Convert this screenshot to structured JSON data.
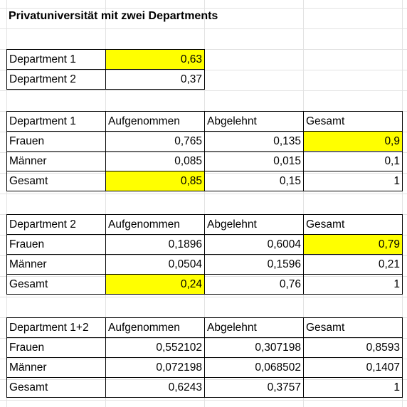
{
  "title": "Privatuniversität mit zwei Departments",
  "shares": [
    {
      "label": "Department 1",
      "value": "0,63"
    },
    {
      "label": "Department 2",
      "value": "0,37"
    }
  ],
  "tables": [
    {
      "header": [
        "Department 1",
        "Aufgenommen",
        "Abgelehnt",
        "Gesamt"
      ],
      "rows": [
        [
          "Frauen",
          "0,765",
          "0,135",
          "0,9"
        ],
        [
          "Männer",
          "0,085",
          "0,015",
          "0,1"
        ],
        [
          "Gesamt",
          "0,85",
          "0,15",
          "1"
        ]
      ]
    },
    {
      "header": [
        "Department 2",
        "Aufgenommen",
        "Abgelehnt",
        "Gesamt"
      ],
      "rows": [
        [
          "Frauen",
          "0,1896",
          "0,6004",
          "0,79"
        ],
        [
          "Männer",
          "0,0504",
          "0,1596",
          "0,21"
        ],
        [
          "Gesamt",
          "0,24",
          "0,76",
          "1"
        ]
      ]
    },
    {
      "header": [
        "Department 1+2",
        "Aufgenommen",
        "Abgelehnt",
        "Gesamt"
      ],
      "rows": [
        [
          "Frauen",
          "0,552102",
          "0,307198",
          "0,8593"
        ],
        [
          "Männer",
          "0,072198",
          "0,068502",
          "0,1407"
        ],
        [
          "Gesamt",
          "0,6243",
          "0,3757",
          "1"
        ]
      ]
    }
  ],
  "highlight_color": "#ffff00"
}
